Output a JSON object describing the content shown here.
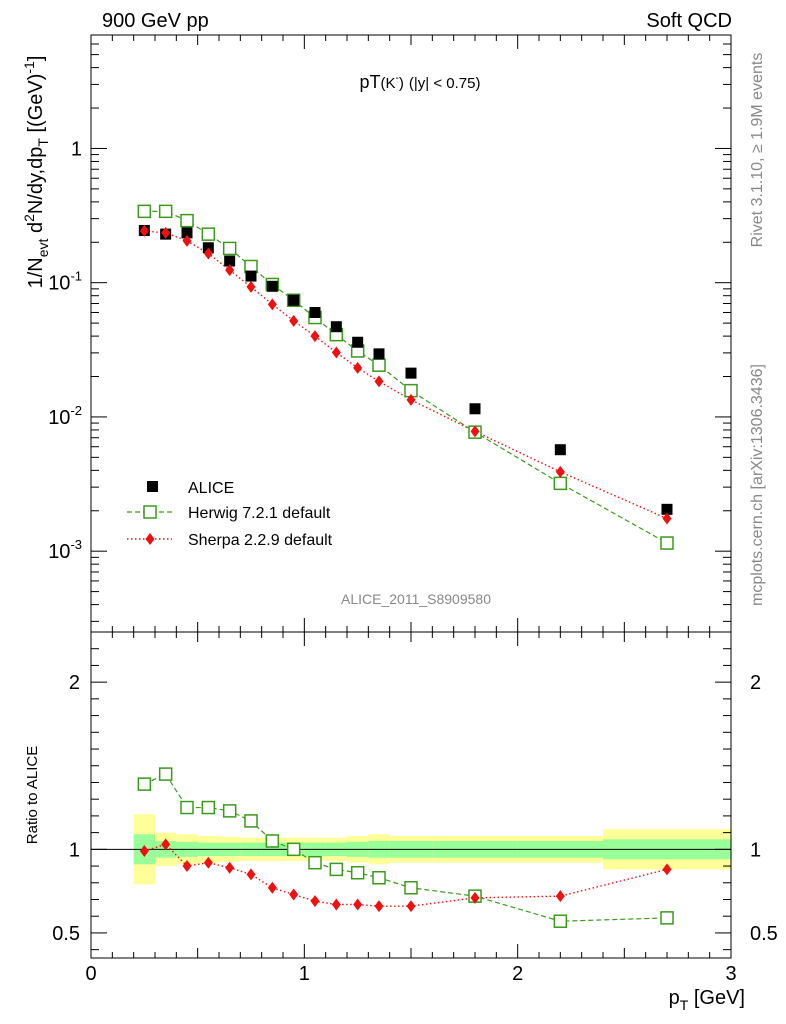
{
  "header": {
    "left": "900 GeV pp",
    "right": "Soft QCD"
  },
  "side": {
    "rivet": "Rivet 3.1.10, ≥ 1.9M events",
    "mcplots": "mcplots.cern.ch [arXiv:1306.3436]"
  },
  "analysis_id": "ALICE_2011_S8909580",
  "colors": {
    "data": "#000000",
    "herwig": "#3a9a1a",
    "sherpa": "#ee1111",
    "band_outer": "#ffff99",
    "band_inner": "#99ff99",
    "label_gray": "#888888"
  },
  "chart_data": [
    {
      "type": "scatter",
      "panel": "main",
      "title": "pT(K⁻) (|y| < 0.75)",
      "title_main": "pT",
      "title_particle": "(K",
      "title_charge": "-",
      "title_close": ")",
      "title_cut": "(|y| < 0.75)",
      "yscale": "log",
      "ylim": [
        0.00025,
        7.0
      ],
      "xlim": [
        0,
        3
      ],
      "ylabel_parts": {
        "a": "1/N",
        "a_sub": "evt",
        "b": " d",
        "b_sup": "2",
        "c": "N/dy,dp",
        "c_sub": "T",
        "d": " [(GeV)",
        "d_sup": "-1",
        "e": "]"
      },
      "yticks": [
        {
          "value": 1,
          "label": "1"
        },
        {
          "value": 0.1,
          "base": "10",
          "exp": "-1"
        },
        {
          "value": 0.01,
          "base": "10",
          "exp": "-2"
        },
        {
          "value": 0.001,
          "base": "10",
          "exp": "-3"
        }
      ],
      "legend_position": "lower-left",
      "series": [
        {
          "name": "ALICE",
          "label": "ALICE",
          "marker": "filled-square",
          "x": [
            0.25,
            0.35,
            0.45,
            0.55,
            0.65,
            0.75,
            0.85,
            0.95,
            1.05,
            1.15,
            1.25,
            1.35,
            1.5,
            1.8,
            2.2,
            2.7
          ],
          "y": [
            0.245,
            0.23,
            0.235,
            0.182,
            0.145,
            0.112,
            0.094,
            0.074,
            0.06,
            0.047,
            0.036,
            0.0295,
            0.0212,
            0.0115,
            0.0057,
            0.00205
          ]
        },
        {
          "name": "Herwig 7.2.1 default",
          "label": "Herwig 7.2.1 default",
          "marker": "open-square",
          "line": "dashed",
          "x": [
            0.25,
            0.35,
            0.45,
            0.55,
            0.65,
            0.75,
            0.85,
            0.95,
            1.05,
            1.15,
            1.25,
            1.35,
            1.5,
            1.8,
            2.2,
            2.7
          ],
          "y": [
            0.34,
            0.34,
            0.29,
            0.23,
            0.18,
            0.132,
            0.097,
            0.074,
            0.055,
            0.041,
            0.031,
            0.0243,
            0.0157,
            0.0077,
            0.0032,
            0.00115
          ]
        },
        {
          "name": "Sherpa 2.2.9 default",
          "label": "Sherpa 2.2.9 default",
          "marker": "filled-diamond",
          "line": "dotted",
          "x": [
            0.25,
            0.35,
            0.45,
            0.55,
            0.65,
            0.75,
            0.85,
            0.95,
            1.05,
            1.15,
            1.25,
            1.35,
            1.5,
            1.8,
            2.2,
            2.7
          ],
          "y": [
            0.243,
            0.235,
            0.205,
            0.165,
            0.124,
            0.093,
            0.069,
            0.052,
            0.04,
            0.0302,
            0.0232,
            0.0184,
            0.0134,
            0.0078,
            0.0039,
            0.00175
          ]
        }
      ]
    },
    {
      "type": "scatter",
      "panel": "ratio",
      "ylabel": "Ratio to ALICE",
      "xlabel_main": "p",
      "xlabel_sub": "T",
      "xlabel_unit": " [GeV]",
      "xlim": [
        0,
        3
      ],
      "ylim": [
        0.35,
        2.3
      ],
      "xticks": [
        {
          "value": 0,
          "label": "0"
        },
        {
          "value": 1,
          "label": "1"
        },
        {
          "value": 2,
          "label": "2"
        },
        {
          "value": 3,
          "label": "3"
        }
      ],
      "yticks": [
        {
          "value": 0.5,
          "label": "0.5"
        },
        {
          "value": 1,
          "label": "1"
        },
        {
          "value": 2,
          "label": "2"
        }
      ],
      "bands": {
        "edges": [
          0.2,
          0.3,
          0.4,
          0.5,
          0.6,
          0.7,
          0.8,
          0.9,
          1.0,
          1.1,
          1.2,
          1.3,
          1.4,
          1.6,
          2.0,
          2.4,
          3.0
        ],
        "outer": [
          0.21,
          0.1,
          0.09,
          0.08,
          0.075,
          0.07,
          0.07,
          0.07,
          0.07,
          0.07,
          0.08,
          0.09,
          0.08,
          0.08,
          0.08,
          0.12
        ],
        "inner": [
          0.09,
          0.05,
          0.045,
          0.04,
          0.04,
          0.04,
          0.04,
          0.04,
          0.04,
          0.04,
          0.045,
          0.05,
          0.05,
          0.05,
          0.05,
          0.06
        ]
      },
      "series": [
        {
          "name": "Herwig 7.2.1 default",
          "x": [
            0.25,
            0.35,
            0.45,
            0.55,
            0.65,
            0.75,
            0.85,
            0.95,
            1.05,
            1.15,
            1.25,
            1.35,
            1.5,
            1.8,
            2.2,
            2.7
          ],
          "y": [
            1.39,
            1.45,
            1.25,
            1.25,
            1.23,
            1.17,
            1.05,
            1.0,
            0.92,
            0.88,
            0.86,
            0.83,
            0.77,
            0.72,
            0.57,
            0.59
          ]
        },
        {
          "name": "Sherpa 2.2.9 default",
          "x": [
            0.25,
            0.35,
            0.45,
            0.55,
            0.65,
            0.75,
            0.85,
            0.95,
            1.05,
            1.15,
            1.25,
            1.35,
            1.5,
            1.8,
            2.2,
            2.7
          ],
          "y": [
            0.99,
            1.03,
            0.9,
            0.92,
            0.89,
            0.85,
            0.77,
            0.73,
            0.69,
            0.67,
            0.67,
            0.66,
            0.66,
            0.71,
            0.72,
            0.88
          ]
        }
      ]
    }
  ]
}
